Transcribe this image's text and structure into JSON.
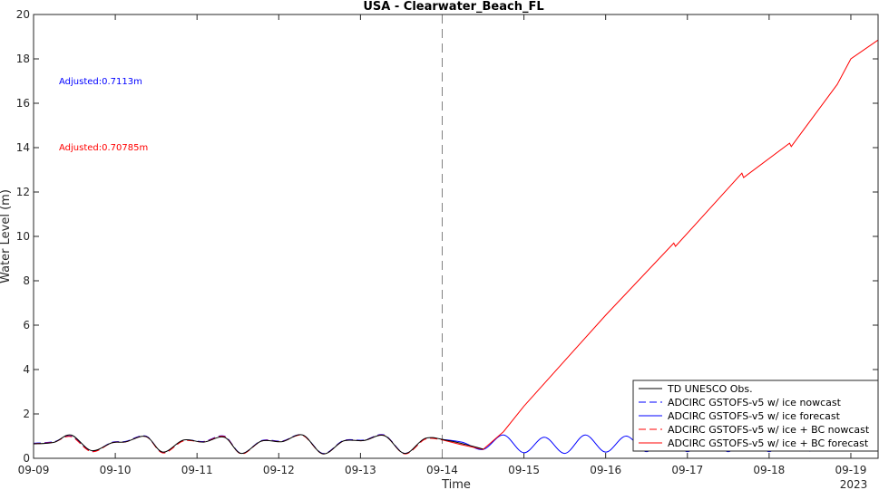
{
  "chart_data": {
    "type": "line",
    "title": "USA - Clearwater_Beach_FL",
    "xlabel": "Time",
    "ylabel": "Water Level (m)",
    "x_start": "2023-09-09",
    "x_end": "2023-09-19 08:00",
    "ylim": [
      0,
      20
    ],
    "yticks": [
      0,
      2,
      4,
      6,
      8,
      10,
      12,
      14,
      16,
      18,
      20
    ],
    "xtick_labels": [
      "09-09",
      "09-10",
      "09-11",
      "09-12",
      "09-13",
      "09-14",
      "09-15",
      "09-16",
      "09-17",
      "09-18",
      "09-19"
    ],
    "year_label": "2023",
    "nowcast_forecast_divider": "2023-09-14",
    "legend_position": "bottom-right",
    "annotations": [
      {
        "text": "Adjusted:0.7113m",
        "color": "#0000ff"
      },
      {
        "text": "Adjusted:0.70785m",
        "color": "#ff0000"
      }
    ],
    "series": [
      {
        "name": "TD UNESCO Obs.",
        "color": "#000000",
        "style": "solid",
        "x": [
          "2023-09-09 00:00",
          "2023-09-09 06:00",
          "2023-09-09 11:00",
          "2023-09-09 17:00",
          "2023-09-09 23:00",
          "2023-09-10 03:00",
          "2023-09-10 09:00",
          "2023-09-10 14:00",
          "2023-09-10 20:00",
          "2023-09-11 02:00",
          "2023-09-11 08:00",
          "2023-09-11 13:00",
          "2023-09-11 19:00",
          "2023-09-12 01:00",
          "2023-09-12 07:00",
          "2023-09-12 13:00",
          "2023-09-12 19:00",
          "2023-09-13 01:00",
          "2023-09-13 07:00",
          "2023-09-13 13:00",
          "2023-09-13 19:00",
          "2023-09-14 01:00",
          "2023-09-14 07:00",
          "2023-09-14 12:00"
        ],
        "y": [
          0.65,
          0.72,
          1.05,
          0.35,
          0.7,
          0.74,
          0.98,
          0.28,
          0.82,
          0.73,
          0.95,
          0.22,
          0.78,
          0.75,
          1.05,
          0.2,
          0.78,
          0.8,
          1.02,
          0.22,
          0.9,
          0.82,
          0.62,
          0.42
        ]
      },
      {
        "name": "ADCIRC GSTOFS-v5 w/ ice nowcast",
        "color": "#0000ff",
        "style": "dashed",
        "x": [
          "2023-09-09 00:00",
          "2023-09-09 06:00",
          "2023-09-09 11:00",
          "2023-09-09 17:00",
          "2023-09-09 23:00",
          "2023-09-10 03:00",
          "2023-09-10 09:00",
          "2023-09-10 14:00",
          "2023-09-10 20:00",
          "2023-09-11 02:00",
          "2023-09-11 08:00",
          "2023-09-11 13:00",
          "2023-09-11 19:00",
          "2023-09-12 01:00",
          "2023-09-12 07:00",
          "2023-09-12 13:00",
          "2023-09-12 19:00",
          "2023-09-13 01:00",
          "2023-09-13 07:00",
          "2023-09-13 13:00",
          "2023-09-13 19:00",
          "2023-09-14 00:00"
        ],
        "y": [
          0.68,
          0.75,
          1.0,
          0.32,
          0.72,
          0.76,
          1.0,
          0.25,
          0.8,
          0.76,
          1.0,
          0.22,
          0.8,
          0.78,
          1.05,
          0.22,
          0.8,
          0.82,
          1.05,
          0.22,
          0.88,
          0.85
        ]
      },
      {
        "name": "ADCIRC GSTOFS-v5 w/ ice forecast",
        "color": "#0000ff",
        "style": "solid",
        "x": [
          "2023-09-14 00:00",
          "2023-09-14 06:00",
          "2023-09-14 12:00",
          "2023-09-14 18:00",
          "2023-09-15 00:00",
          "2023-09-15 06:00",
          "2023-09-15 12:00",
          "2023-09-15 18:00",
          "2023-09-16 00:00",
          "2023-09-16 06:00",
          "2023-09-16 12:00",
          "2023-09-16 18:00",
          "2023-09-17 00:00",
          "2023-09-17 06:00",
          "2023-09-17 12:00",
          "2023-09-17 18:00",
          "2023-09-18 00:00",
          "2023-09-18 06:00",
          "2023-09-18 12:00",
          "2023-09-18 18:00",
          "2023-09-19 00:00",
          "2023-09-19 08:00"
        ],
        "y": [
          0.85,
          0.72,
          0.4,
          1.05,
          0.25,
          0.95,
          0.22,
          1.05,
          0.28,
          1.0,
          0.3,
          1.05,
          0.3,
          1.0,
          0.3,
          1.05,
          0.3,
          1.0,
          0.32,
          1.05,
          0.35,
          0.75
        ]
      },
      {
        "name": "ADCIRC GSTOFS-v5 w/ ice + BC nowcast",
        "color": "#ff0000",
        "style": "dashed",
        "x": [
          "2023-09-09 00:00",
          "2023-09-09 06:00",
          "2023-09-09 11:00",
          "2023-09-09 17:00",
          "2023-09-09 23:00",
          "2023-09-10 03:00",
          "2023-09-10 09:00",
          "2023-09-10 14:00",
          "2023-09-10 20:00",
          "2023-09-11 02:00",
          "2023-09-11 08:00",
          "2023-09-11 13:00",
          "2023-09-11 19:00",
          "2023-09-12 01:00",
          "2023-09-12 07:00",
          "2023-09-12 13:00",
          "2023-09-12 19:00",
          "2023-09-13 01:00",
          "2023-09-13 07:00",
          "2023-09-13 13:00",
          "2023-09-13 19:00",
          "2023-09-14 00:00"
        ],
        "y": [
          0.66,
          0.73,
          0.98,
          0.3,
          0.7,
          0.74,
          0.98,
          0.24,
          0.78,
          0.74,
          0.98,
          0.2,
          0.78,
          0.76,
          1.03,
          0.2,
          0.78,
          0.8,
          1.03,
          0.2,
          0.86,
          0.83
        ]
      },
      {
        "name": "ADCIRC GSTOFS-v5 w/ ice + BC forecast",
        "color": "#ff0000",
        "style": "solid",
        "x": [
          "2023-09-14 00:00",
          "2023-09-14 06:00",
          "2023-09-14 12:00",
          "2023-09-14 18:00",
          "2023-09-15 00:00",
          "2023-09-16 00:00",
          "2023-09-16 20:00",
          "2023-09-16 20:30",
          "2023-09-17 16:00",
          "2023-09-17 16:30",
          "2023-09-18 06:00",
          "2023-09-18 06:30",
          "2023-09-18 20:00",
          "2023-09-19 00:00",
          "2023-09-19 08:00"
        ],
        "y": [
          0.83,
          0.6,
          0.4,
          1.2,
          2.35,
          6.45,
          9.7,
          9.55,
          12.85,
          12.65,
          14.2,
          14.05,
          16.85,
          18.0,
          18.85
        ]
      }
    ]
  }
}
